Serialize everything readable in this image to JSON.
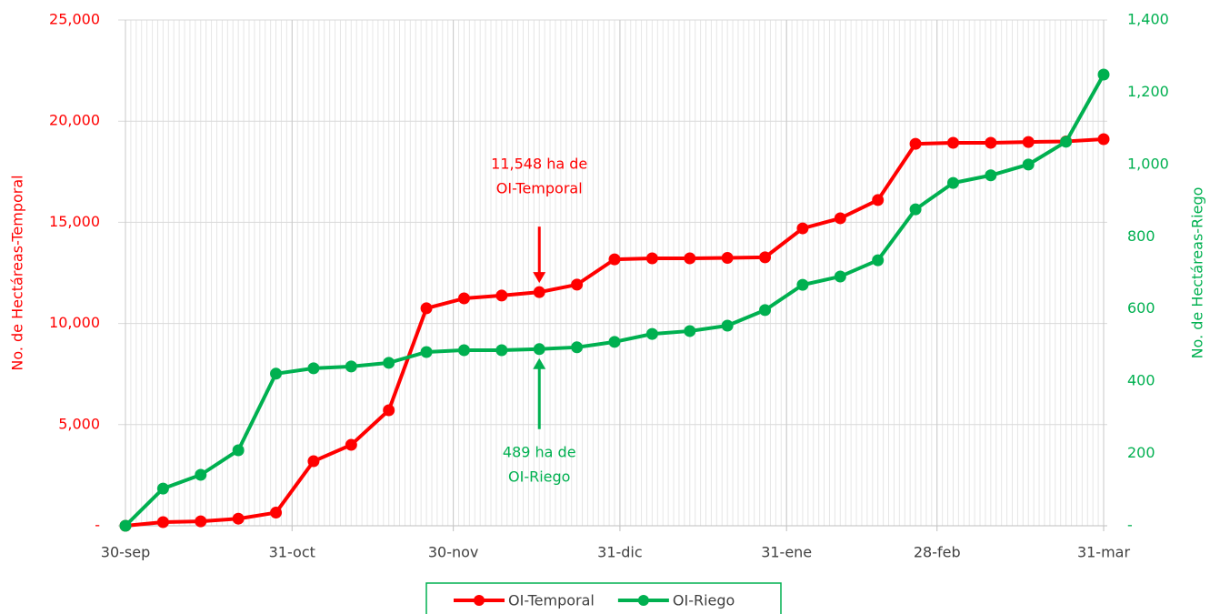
{
  "chart_data": {
    "type": "line",
    "y_label": "No. de Hectáreas-Temporal",
    "y2_label": "No. de Hectáreas-Riego",
    "x": [
      0,
      7,
      14,
      21,
      28,
      35,
      42,
      49,
      56,
      63,
      70,
      77,
      84,
      91,
      98,
      105,
      112,
      119,
      126,
      133,
      140,
      147,
      154,
      161,
      168,
      175,
      182
    ],
    "xlim": [
      0,
      182
    ],
    "xticks": [
      {
        "value": 0,
        "label": "30-sep"
      },
      {
        "value": 31,
        "label": "31-oct"
      },
      {
        "value": 61,
        "label": "30-nov"
      },
      {
        "value": 92,
        "label": "31-dic"
      },
      {
        "value": 123,
        "label": "31-ene"
      },
      {
        "value": 151,
        "label": "28-feb"
      },
      {
        "value": 182,
        "label": "31-mar"
      }
    ],
    "ylim": [
      0,
      25000
    ],
    "yticks": [
      {
        "value": 0,
        "label": "-"
      },
      {
        "value": 5000,
        "label": "5,000"
      },
      {
        "value": 10000,
        "label": "10,000"
      },
      {
        "value": 15000,
        "label": "15,000"
      },
      {
        "value": 20000,
        "label": "20,000"
      },
      {
        "value": 25000,
        "label": "25,000"
      }
    ],
    "y2lim": [
      0,
      1400
    ],
    "y2ticks": [
      {
        "value": 0,
        "label": "-"
      },
      200,
      400,
      600,
      800,
      {
        "value": 1000,
        "label": "1,000"
      },
      {
        "value": 1200,
        "label": "1,200"
      },
      {
        "value": 1400,
        "label": "1,400"
      }
    ],
    "grid": true,
    "legend": "bottom",
    "series": [
      {
        "name": "OI-Temporal",
        "color": "#ff0000",
        "values": [
          0,
          180,
          220,
          350,
          650,
          3190,
          4000,
          5710,
          10750,
          11240,
          11380,
          11548,
          11920,
          13170,
          13220,
          13220,
          13240,
          13270,
          14700,
          15200,
          16100,
          18880,
          18930,
          18930,
          18970,
          19000,
          19110
        ]
      },
      {
        "name": "OI-Riego",
        "color": "#00b050",
        "axis": "y2",
        "values": [
          0,
          103,
          141,
          209,
          421,
          436,
          441,
          451,
          481,
          486,
          486,
          489,
          494,
          509,
          531,
          539,
          554,
          597,
          667,
          690,
          735,
          876,
          949,
          970,
          1000,
          1063,
          1249
        ]
      }
    ],
    "annotations": [
      {
        "lines": [
          "11,548 ha de",
          "OI-Temporal"
        ],
        "x": 77,
        "y": 11548,
        "color": "#ff0000"
      },
      {
        "lines": [
          "489 ha de",
          "OI-Riego"
        ],
        "x": 77,
        "y": 489,
        "axis": "y2",
        "color": "#00b050"
      }
    ]
  }
}
